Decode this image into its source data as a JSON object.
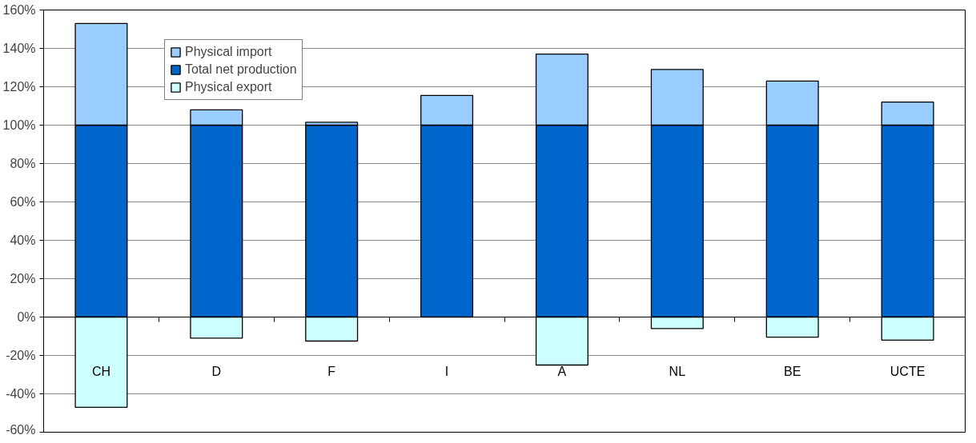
{
  "chart_data": {
    "type": "bar",
    "stacked": true,
    "categories": [
      "CH",
      "D",
      "F",
      "I",
      "A",
      "NL",
      "BE",
      "UCTE"
    ],
    "series": [
      {
        "name": "Total net production",
        "color": "#0066cc",
        "values": [
          100,
          100,
          100,
          100,
          100,
          100,
          100,
          100
        ]
      },
      {
        "name": "Physical import",
        "color": "#99ccff",
        "values": [
          53,
          8,
          1.5,
          15.5,
          37,
          29,
          23,
          12
        ]
      },
      {
        "name": "Physical export",
        "color": "#ccffff",
        "values": [
          -47,
          -11,
          -12.5,
          null,
          -25,
          -6,
          -10.5,
          -12
        ]
      }
    ],
    "ylim": [
      -60,
      160
    ],
    "yticks": [
      {
        "value": -60,
        "label": "-60%"
      },
      {
        "value": -40,
        "label": "-40%"
      },
      {
        "value": -20,
        "label": "-20%"
      },
      {
        "value": 0,
        "label": "0%"
      },
      {
        "value": 20,
        "label": "20%"
      },
      {
        "value": 40,
        "label": "40%"
      },
      {
        "value": 60,
        "label": "60%"
      },
      {
        "value": 80,
        "label": "80%"
      },
      {
        "value": 100,
        "label": "100%"
      },
      {
        "value": 120,
        "label": "120%"
      },
      {
        "value": 140,
        "label": "140%"
      },
      {
        "value": 160,
        "label": "160%"
      }
    ],
    "grid": "y",
    "legend": "top left"
  }
}
